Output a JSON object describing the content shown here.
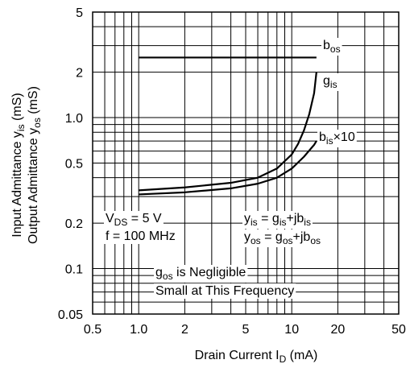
{
  "chart_data": {
    "type": "line",
    "xscale": "log",
    "yscale": "log",
    "xlim": [
      0.5,
      50
    ],
    "ylim": [
      0.05,
      5
    ],
    "grid": true,
    "xticks": [
      0.5,
      1,
      2,
      5,
      10,
      20,
      50
    ],
    "xtick_labels": [
      "0.5",
      "1.0",
      "2",
      "5",
      "10",
      "20",
      "50"
    ],
    "yticks": [
      0.05,
      0.1,
      0.2,
      0.5,
      1,
      2,
      5
    ],
    "ytick_labels": [
      "0.05",
      "0.1",
      "0.2",
      "0.5",
      "1.0",
      "2",
      "5"
    ],
    "xlabel": {
      "main": "Drain Current  I",
      "sub": "D",
      "unit": "  (mA)"
    },
    "ylabel_line1": {
      "pre": "Input Admittance  y",
      "sub": "is",
      "post": "  (mS)"
    },
    "ylabel_line2": {
      "pre": "Output Admittance  y",
      "sub": "os",
      "post": "  (mS)"
    },
    "series": [
      {
        "name_main": "b",
        "name_sub": "os",
        "name_post": "",
        "x": [
          1.0,
          14.5
        ],
        "y": [
          2.5,
          2.5
        ]
      },
      {
        "name_main": "g",
        "name_sub": "is",
        "name_post": "",
        "x": [
          1.0,
          2.0,
          4.0,
          6.0,
          8.0,
          10.0,
          11.0,
          12.0,
          13.0,
          14.0,
          14.5
        ],
        "y": [
          0.33,
          0.345,
          0.37,
          0.4,
          0.46,
          0.57,
          0.67,
          0.82,
          1.05,
          1.45,
          2.0
        ]
      },
      {
        "name_main": "b",
        "name_sub": "is",
        "name_post": "×10",
        "x": [
          1.0,
          2.0,
          4.0,
          6.0,
          8.0,
          10.0,
          12.0,
          14.0,
          14.5
        ],
        "y": [
          0.31,
          0.32,
          0.34,
          0.365,
          0.4,
          0.46,
          0.55,
          0.66,
          0.7
        ]
      }
    ],
    "annotations": {
      "vds": {
        "pre": "V",
        "sub": "DS",
        "post": " = 5 V"
      },
      "freq": "f = 100 MHz",
      "yis": {
        "a": "y",
        "as": "is",
        "b": " = g",
        "bs": "is",
        "c": "+jb",
        "cs": "is"
      },
      "yos": {
        "a": "y",
        "as": "os",
        "b": " = g",
        "bs": "os",
        "c": "+jb",
        "cs": "os"
      },
      "gos_note": {
        "pre": "g",
        "sub": "os",
        "post": " is Negligible"
      },
      "freq_note": "Small at This Frequency"
    }
  }
}
